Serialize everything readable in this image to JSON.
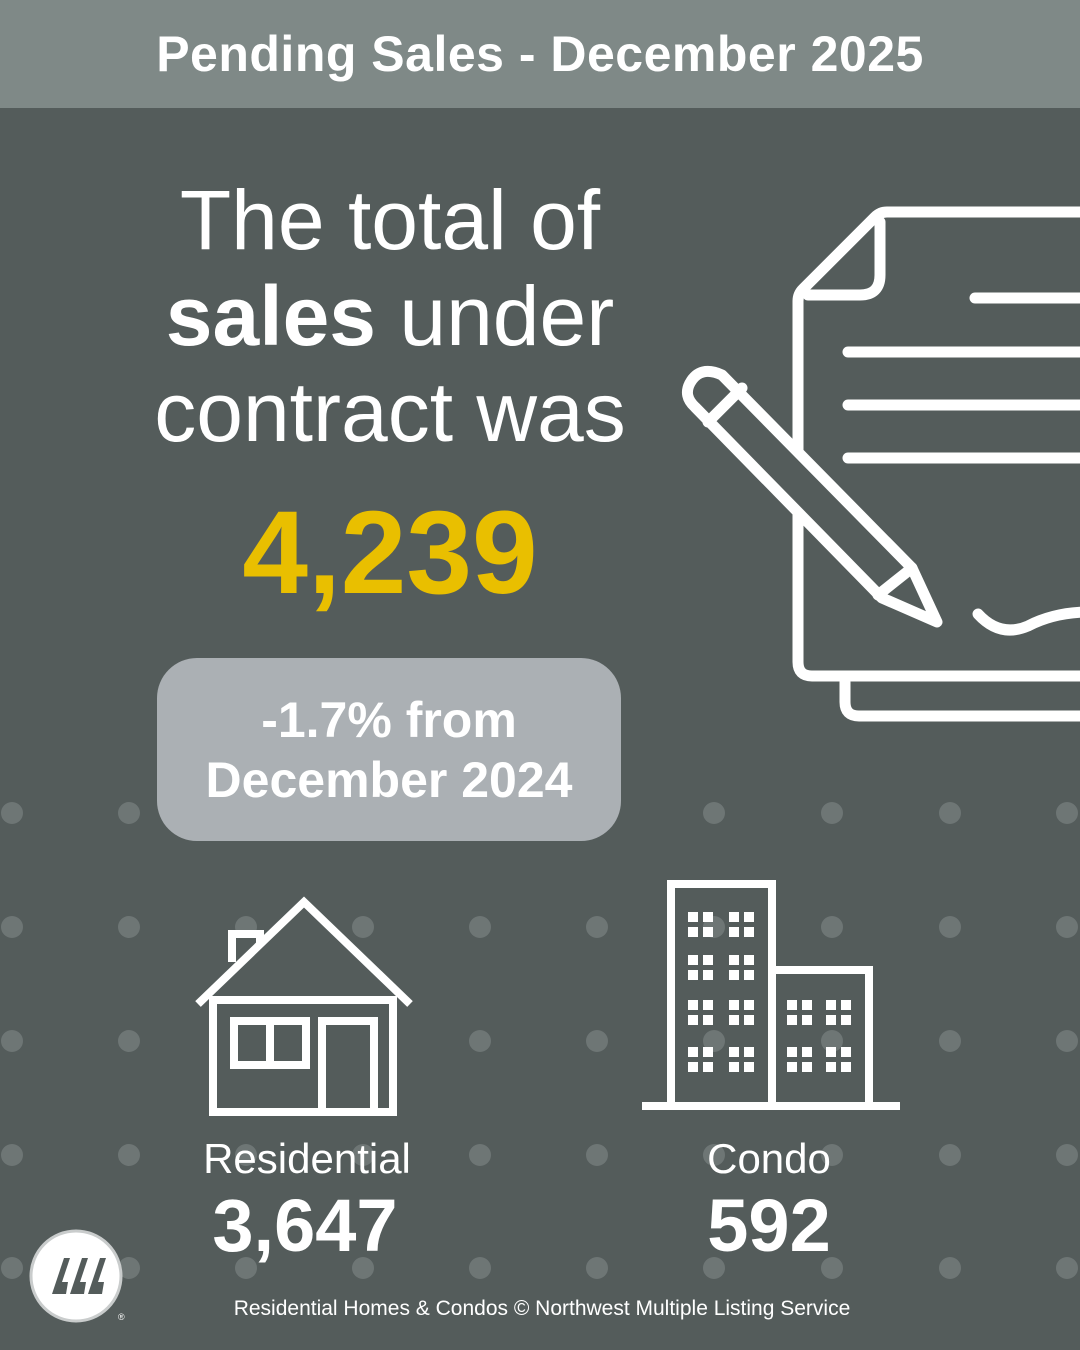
{
  "header": {
    "title": "Pending Sales - December 2025"
  },
  "headline": {
    "line1": "The total of",
    "line2_bold": "sales",
    "line2_rest": " under",
    "line3": "contract was"
  },
  "total": {
    "value": "4,239"
  },
  "change": {
    "line1": "-1.7% from",
    "line2": "December 2024"
  },
  "categories": [
    {
      "label": "Residential",
      "value": "3,647",
      "icon": "house-icon"
    },
    {
      "label": "Condo",
      "value": "592",
      "icon": "buildings-icon"
    }
  ],
  "footer": {
    "text": "Residential Homes & Condos © Northwest Multiple Listing Service"
  },
  "logo": {
    "icon": "nwmls-logo",
    "mark": "®"
  },
  "colors": {
    "background": "#545c5b",
    "header_bg": "#7f8987",
    "accent_yellow": "#e9bf00",
    "pill_bg": "#abb0b4",
    "dots": "#6e7675",
    "text": "#ffffff"
  }
}
